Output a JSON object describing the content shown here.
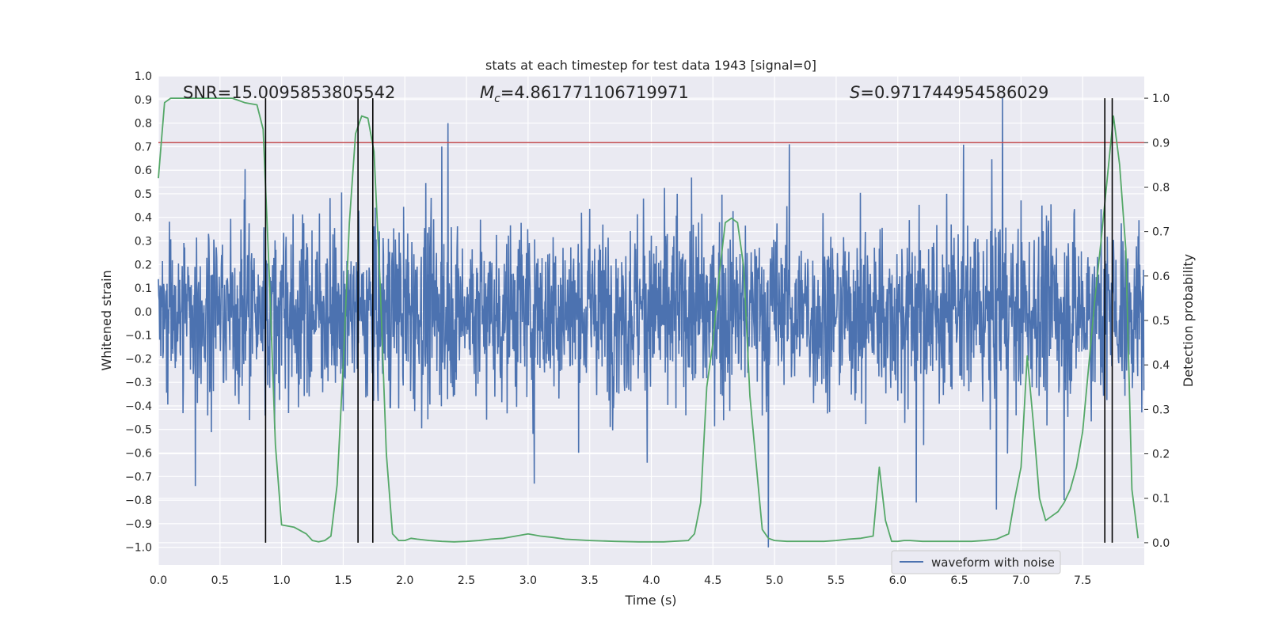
{
  "chart_data": {
    "type": "line",
    "title": "stats at each timestep for test data 1943 [signal=0]",
    "xlabel": "Time (s)",
    "ylabel_left": "Whitened strain",
    "ylabel_right": "Detection probability",
    "xlim": [
      0.0,
      8.0
    ],
    "ylim_left": [
      -1.075,
      1.0
    ],
    "ylim_right": [
      -0.05,
      1.05
    ],
    "x_ticks": [
      "0.0",
      "0.5",
      "1.0",
      "1.5",
      "2.0",
      "2.5",
      "3.0",
      "3.5",
      "4.0",
      "4.5",
      "5.0",
      "5.5",
      "6.0",
      "6.5",
      "7.0",
      "7.5"
    ],
    "y_left_ticks": [
      "1.0",
      "0.9",
      "0.8",
      "0.7",
      "0.6",
      "0.5",
      "0.4",
      "0.3",
      "0.2",
      "0.1",
      "0.0",
      "−0.1",
      "−0.2",
      "−0.3",
      "−0.4",
      "−0.5",
      "−0.6",
      "−0.7",
      "−0.8",
      "−0.9",
      "−1.0"
    ],
    "y_right_ticks": [
      "1.0",
      "0.9",
      "0.8",
      "0.7",
      "0.6",
      "0.5",
      "0.4",
      "0.3",
      "0.2",
      "0.1",
      "0.0"
    ],
    "annotations": {
      "snr": "SNR=15.0095853805542",
      "mc_symbol": "M",
      "mc_sub": "c",
      "mc_value": "=4.861771106719971",
      "s_symbol": "S",
      "s_value": "=0.971744954586029"
    },
    "legend": [
      "waveform with noise"
    ],
    "threshold": 0.9,
    "waveform": {
      "name": "waveform with noise",
      "color": "#4c72b0",
      "envelope_typical": 0.45,
      "notable_peaks": [
        {
          "x": 0.3,
          "y": -0.74
        },
        {
          "x": 2.3,
          "y": 0.7
        },
        {
          "x": 2.35,
          "y": 0.8
        },
        {
          "x": 3.05,
          "y": -0.73
        },
        {
          "x": 4.95,
          "y": -1.0
        },
        {
          "x": 5.12,
          "y": 0.71
        },
        {
          "x": 6.15,
          "y": -0.81
        },
        {
          "x": 6.8,
          "y": -0.84
        },
        {
          "x": 6.85,
          "y": 0.91
        },
        {
          "x": 7.35,
          "y": -0.8
        }
      ]
    },
    "detection_probability": {
      "color": "#55a868",
      "x": [
        0.0,
        0.05,
        0.1,
        0.2,
        0.3,
        0.4,
        0.5,
        0.6,
        0.65,
        0.7,
        0.8,
        0.85,
        0.9,
        0.95,
        1.0,
        1.1,
        1.2,
        1.25,
        1.3,
        1.35,
        1.4,
        1.45,
        1.5,
        1.55,
        1.6,
        1.65,
        1.7,
        1.75,
        1.8,
        1.85,
        1.9,
        1.95,
        2.0,
        2.05,
        2.1,
        2.2,
        2.3,
        2.4,
        2.5,
        2.6,
        2.7,
        2.8,
        2.9,
        3.0,
        3.1,
        3.2,
        3.3,
        3.5,
        3.7,
        3.9,
        4.1,
        4.3,
        4.35,
        4.4,
        4.45,
        4.5,
        4.55,
        4.6,
        4.65,
        4.7,
        4.75,
        4.8,
        4.85,
        4.9,
        4.95,
        5.0,
        5.1,
        5.2,
        5.3,
        5.4,
        5.5,
        5.6,
        5.7,
        5.8,
        5.85,
        5.9,
        5.95,
        6.0,
        6.05,
        6.1,
        6.2,
        6.3,
        6.4,
        6.5,
        6.6,
        6.7,
        6.8,
        6.9,
        6.95,
        7.0,
        7.05,
        7.1,
        7.15,
        7.2,
        7.25,
        7.3,
        7.35,
        7.4,
        7.45,
        7.5,
        7.55,
        7.6,
        7.65,
        7.7,
        7.75,
        7.8,
        7.85,
        7.9,
        7.95
      ],
      "y": [
        0.82,
        0.99,
        1.0,
        1.0,
        1.0,
        1.0,
        1.0,
        1.0,
        0.995,
        0.99,
        0.985,
        0.93,
        0.6,
        0.22,
        0.04,
        0.035,
        0.02,
        0.005,
        0.002,
        0.005,
        0.015,
        0.13,
        0.4,
        0.72,
        0.92,
        0.96,
        0.955,
        0.88,
        0.58,
        0.2,
        0.02,
        0.005,
        0.005,
        0.01,
        0.008,
        0.005,
        0.003,
        0.002,
        0.003,
        0.005,
        0.008,
        0.01,
        0.015,
        0.02,
        0.015,
        0.012,
        0.008,
        0.005,
        0.003,
        0.002,
        0.002,
        0.005,
        0.02,
        0.09,
        0.35,
        0.45,
        0.6,
        0.72,
        0.73,
        0.72,
        0.62,
        0.33,
        0.18,
        0.03,
        0.01,
        0.005,
        0.003,
        0.003,
        0.003,
        0.003,
        0.005,
        0.008,
        0.01,
        0.015,
        0.17,
        0.05,
        0.003,
        0.003,
        0.005,
        0.005,
        0.003,
        0.003,
        0.003,
        0.003,
        0.003,
        0.005,
        0.008,
        0.02,
        0.1,
        0.17,
        0.42,
        0.27,
        0.1,
        0.05,
        0.06,
        0.07,
        0.09,
        0.12,
        0.17,
        0.25,
        0.4,
        0.55,
        0.68,
        0.82,
        0.96,
        0.85,
        0.66,
        0.12,
        0.01
      ]
    },
    "vertical_lines_x": [
      0.87,
      1.62,
      1.74,
      7.68,
      7.74
    ]
  }
}
